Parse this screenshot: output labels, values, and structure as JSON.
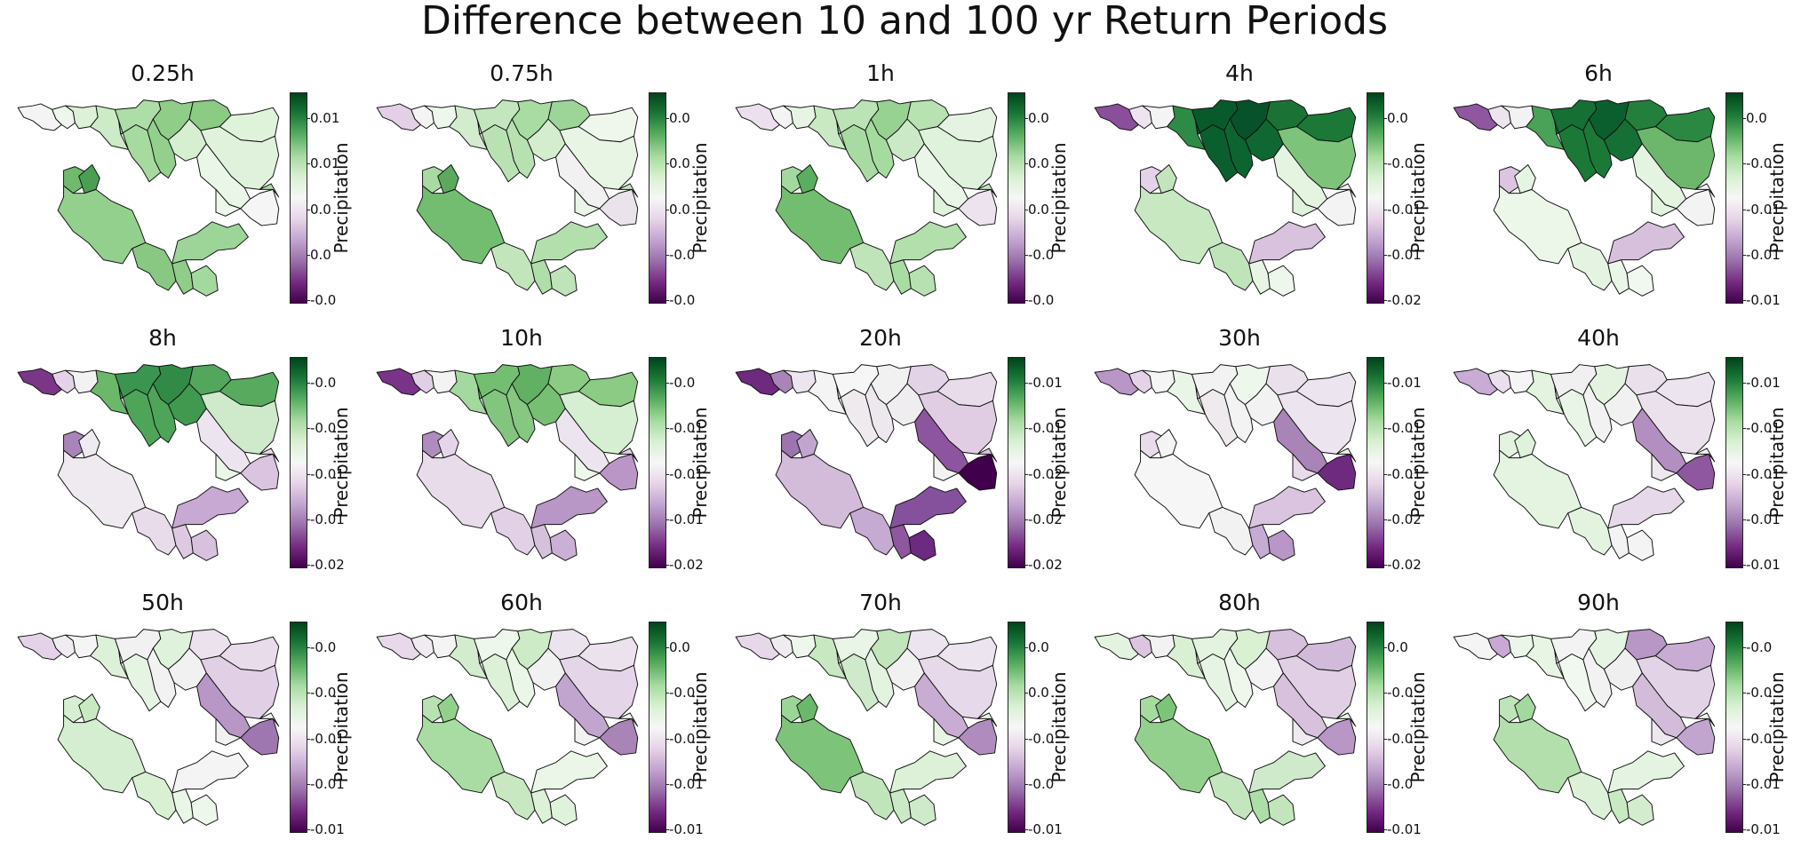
{
  "title": "Difference between 10 and 100 yr Return Periods",
  "colorbar_label": "Precipitation",
  "colormap": [
    "#00441b",
    "#1b7837",
    "#5aae61",
    "#a6dba0",
    "#d9f0d3",
    "#f7f7f7",
    "#e7d4e8",
    "#c2a5cf",
    "#9970ab",
    "#762a83",
    "#40004b"
  ],
  "regions": [
    "r1",
    "r2",
    "r3",
    "r4",
    "r5",
    "r6",
    "r7",
    "r8",
    "r9",
    "r10",
    "r11",
    "r12",
    "r13",
    "r14",
    "r15",
    "r16",
    "r17",
    "r18",
    "r19",
    "r20",
    "r21",
    "r22",
    "r23"
  ],
  "panels": [
    {
      "label": "0.25h",
      "ticks": [
        "0.01",
        "0.01",
        "0.0",
        "0.0",
        "-0.0"
      ],
      "fills": [
        "#f4f4f4",
        "#eef7ec",
        "#dcf1d8",
        "#ccebc6",
        "#aede a8",
        "#a6dba0",
        "#8fcd89",
        "#93d08d",
        "#8bcb84",
        "#d7efd1",
        "#dff3da",
        "#e0f2dc",
        "#eaf6e7",
        "#f5f5f5",
        "#6fba6c",
        "#4b9f53",
        "#93d08d",
        "#88c883",
        "#8fcd89",
        "#a3d99e",
        "#9dd598",
        "#a8dca2",
        "#eef7ec"
      ]
    },
    {
      "label": "0.75h",
      "ticks": [
        "0.0",
        "0.0",
        "0.0",
        "-0.0",
        "-0.0"
      ],
      "fills": [
        "#e3d0e6",
        "#f4f4f4",
        "#eef7ec",
        "#d3ecce",
        "#c4e6bf",
        "#b9e2b3",
        "#a9dca3",
        "#b7e1b1",
        "#9dd598",
        "#d4edcf",
        "#eff7ed",
        "#e8f5e5",
        "#f1f1f1",
        "#ebe3ec",
        "#a8dba2",
        "#5ca95d",
        "#73bd70",
        "#c2e5bc",
        "#afdea9",
        "#bfe4ba",
        "#b3dfad",
        "#c5e7c0",
        "#eaf5e8"
      ]
    },
    {
      "label": "1h",
      "ticks": [
        "0.0",
        "0.0",
        "0.0",
        "-0.0",
        "-0.0"
      ],
      "fills": [
        "#ecdfee",
        "#f4f4f4",
        "#e6f4e3",
        "#c9e9c3",
        "#bbe3b5",
        "#a8dba2",
        "#98d292",
        "#a6dba0",
        "#b8e2b2",
        "#cbe9c6",
        "#e5f4e2",
        "#dff2dc",
        "#eaf6e7",
        "#ece3ee",
        "#a3d99e",
        "#5aae61",
        "#73bd70",
        "#bfe4ba",
        "#a9dca3",
        "#b7e1b1",
        "#b3dfad",
        "#c1e5bb",
        "#dff2db"
      ]
    },
    {
      "label": "4h",
      "ticks": [
        "0.0",
        "-0.0",
        "-0.01",
        "-0.01",
        "-0.02"
      ],
      "fills": [
        "#8a4f9a",
        "#eee4ef",
        "#f4f4f4",
        "#2d8b45",
        "#085a2b",
        "#0b5f2e",
        "#07522a",
        "#0e6431",
        "#1a7334",
        "#0f6731",
        "#1b7837",
        "#7dc47a",
        "#e4f4e1",
        "#f3f3f3",
        "#e4d3e8",
        "#c2e5bc",
        "#c8e8c2",
        "#bfe4ba",
        "#e8f5e5",
        "#eef7ec",
        "#d8c2de",
        "#f0f0f0",
        "#dff2db"
      ]
    },
    {
      "label": "6h",
      "ticks": [
        "0.0",
        "-0.0",
        "-0.01",
        "-0.01",
        "-0.01"
      ],
      "fills": [
        "#8f57a0",
        "#ede5ee",
        "#f2f2f2",
        "#4aa158",
        "#166f35",
        "#1b7837",
        "#0b5f2e",
        "#1b7837",
        "#247f3c",
        "#166f35",
        "#2b8843",
        "#6db76c",
        "#e4f4e1",
        "#f3f3f3",
        "#dbc5e0",
        "#e6f4e3",
        "#ecf6e9",
        "#e5f4e2",
        "#eaf6e7",
        "#f1f8ef",
        "#d6c0dc",
        "#f2f2f2",
        "#e3f3e0"
      ]
    },
    {
      "label": "8h",
      "ticks": [
        "-0.0",
        "-0.0",
        "-0.01",
        "-0.01",
        "-0.02"
      ],
      "fills": [
        "#7b3688",
        "#e4d3e8",
        "#f2f2f2",
        "#6cb86a",
        "#3a9550",
        "#4ea55a",
        "#318b46",
        "#4ea55a",
        "#52a75c",
        "#40994f",
        "#58ab5e",
        "#cfeaca",
        "#ece4ee",
        "#dac4df",
        "#a884b7",
        "#f0ebf1",
        "#efe9f0",
        "#e9dcea",
        "#ddc9e2",
        "#d7c1dd",
        "#c8a9d3",
        "#e9dcea",
        "#ebf6e8"
      ]
    },
    {
      "label": "10h",
      "ticks": [
        "-0.0",
        "-0.01",
        "-0.01",
        "-0.01",
        "-0.02"
      ],
      "fills": [
        "#7a3487",
        "#e0cfe5",
        "#f3f3f3",
        "#a3d99e",
        "#74be71",
        "#83c57f",
        "#61b063",
        "#86c782",
        "#8bcb84",
        "#77bf73",
        "#8bcb84",
        "#d6eed1",
        "#ece4ee",
        "#ba96c6",
        "#b08cbe",
        "#e5d5e8",
        "#e8dbea",
        "#e2d1e6",
        "#d6c1dc",
        "#cbb0d5",
        "#b896c6",
        "#e0cfe5",
        "#eef7ec"
      ]
    },
    {
      "label": "20h",
      "ticks": [
        "-0.01",
        "-0.01",
        "-0.02",
        "-0.02",
        "-0.02"
      ],
      "fills": [
        "#6e2a7e",
        "#a884b7",
        "#ece4ee",
        "#f4f4f4",
        "#f6f6f6",
        "#eeeaee",
        "#f1f1f1",
        "#ede8ee",
        "#e3d3e7",
        "#f0edf1",
        "#e9dcea",
        "#e0cde4",
        "#8d55a0",
        "#40004b",
        "#9c74af",
        "#c2a5cf",
        "#d2bcda",
        "#c5aad2",
        "#8e57a0",
        "#6c2a80",
        "#86519c",
        "#d9c4df",
        "#f2f2f2"
      ]
    },
    {
      "label": "30h",
      "ticks": [
        "-0.01",
        "-0.01",
        "-0.01",
        "-0.02",
        "-0.02"
      ],
      "fills": [
        "#b896c6",
        "#e4d3e8",
        "#f5f5f5",
        "#e9f5e6",
        "#f2f2f2",
        "#eeeaee",
        "#eef7ec",
        "#f3f3f3",
        "#eae0ec",
        "#f2f2f2",
        "#ece4ee",
        "#ece4ee",
        "#a884b7",
        "#6e2a7e",
        "#e8dbea",
        "#f4f4f4",
        "#f6f6f6",
        "#f2f2f2",
        "#c6acd2",
        "#b896c6",
        "#dac4df",
        "#f0f0f0",
        "#e8dbea"
      ]
    },
    {
      "label": "40h",
      "ticks": [
        "-0.01",
        "-0.01",
        "-0.01",
        "-0.01",
        "-0.01"
      ],
      "fills": [
        "#c9acd3",
        "#eae0ec",
        "#f5f5f5",
        "#e3f3e0",
        "#f0f0f0",
        "#e9f5e6",
        "#e3f3e0",
        "#f2f2f2",
        "#e9e0ec",
        "#f1f1f1",
        "#ece4ee",
        "#ebe1ec",
        "#b28fc0",
        "#8f57a0",
        "#e3f3e0",
        "#dff2db",
        "#e4f4e1",
        "#e3f3e0",
        "#f3f3f3",
        "#f4f4f4",
        "#e6d9e9",
        "#f2f2f2",
        "#ede8ee"
      ]
    },
    {
      "label": "50h",
      "ticks": [
        "-0.0",
        "-0.0",
        "-0.01",
        "-0.01",
        "-0.01"
      ],
      "fills": [
        "#e4d3e8",
        "#f0ebf1",
        "#f5f5f5",
        "#dcf1d8",
        "#f1f1f1",
        "#e6f4e3",
        "#dff2db",
        "#f2f2f2",
        "#ebe2ed",
        "#f1f1f1",
        "#e9dcea",
        "#e0cfe5",
        "#b896c6",
        "#9e77b1",
        "#d6eed1",
        "#c9e9c3",
        "#d5edd0",
        "#d9f0d3",
        "#eaf6e7",
        "#edf7eb",
        "#f4f4f4",
        "#f2f2f2",
        "#f1f1f1"
      ]
    },
    {
      "label": "60h",
      "ticks": [
        "0.0",
        "-0.0",
        "-0.0",
        "-0.01",
        "-0.01"
      ],
      "fills": [
        "#e7d8ea",
        "#f0ebf1",
        "#f4f4f4",
        "#d3ecce",
        "#eef7ec",
        "#dcf1d8",
        "#ccebc6",
        "#eaf6e7",
        "#ebe3ed",
        "#f1f1f1",
        "#ebe2ed",
        "#e4d5e8",
        "#c2a5cf",
        "#a884b7",
        "#b8e2b2",
        "#93d08d",
        "#a9dca3",
        "#c8e8c2",
        "#dcf1d8",
        "#dff2db",
        "#ebf6e8",
        "#eff7ed",
        "#f2f2f2"
      ]
    },
    {
      "label": "70h",
      "ticks": [
        "0.0",
        "0.0",
        "-0.0",
        "-0.0",
        "-0.01"
      ],
      "fills": [
        "#e6d7e9",
        "#f0ebf1",
        "#eef7ec",
        "#c7e8c1",
        "#e9f5e6",
        "#cfeaca",
        "#c2e5bc",
        "#e3f3e0",
        "#ece4ee",
        "#f1f1f1",
        "#ece4ee",
        "#e6d9e9",
        "#c9acd3",
        "#b08cbe",
        "#9dd598",
        "#6cb86a",
        "#7dc47a",
        "#c1e5bb",
        "#cbe9c6",
        "#cfeaca",
        "#dcf1d8",
        "#e5f4e2",
        "#e8f5e5"
      ]
    },
    {
      "label": "80h",
      "ticks": [
        "0.0",
        "-0.0",
        "-0.0",
        "-0.0",
        "-0.01"
      ],
      "fills": [
        "#e3f3e0",
        "#dbc5e0",
        "#f2f2f2",
        "#d9f0d3",
        "#e3f3e0",
        "#e6f4e3",
        "#d9f0d3",
        "#eff7ed",
        "#d6c0dc",
        "#f3f3f3",
        "#d2bbda",
        "#e0cfe5",
        "#d7c1dd",
        "#b896c6",
        "#a6dba0",
        "#7dc47a",
        "#93d08d",
        "#c4e6bf",
        "#aedea8",
        "#c2e5bc",
        "#cfeaca",
        "#e9f5e6",
        "#efe9f0"
      ]
    },
    {
      "label": "90h",
      "ticks": [
        "-0.0",
        "-0.0",
        "-0.0",
        "-0.01",
        "-0.01"
      ],
      "fills": [
        "#f4f4f4",
        "#c8a9d3",
        "#eaf6e7",
        "#e8f5e5",
        "#f3f3f3",
        "#f1f8ef",
        "#e6f4e3",
        "#f2f2f2",
        "#b896c6",
        "#efefef",
        "#c9acd3",
        "#e3d3e7",
        "#d2bcda",
        "#c2a5cf",
        "#bfe4ba",
        "#a3d99e",
        "#b3dfad",
        "#dcf1d8",
        "#c9e9c3",
        "#d3ecce",
        "#e5f4e2",
        "#f2f2f2",
        "#ede8ee"
      ]
    }
  ]
}
